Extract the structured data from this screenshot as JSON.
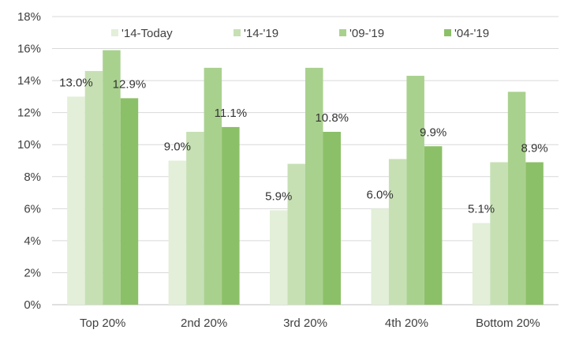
{
  "chart_data": {
    "type": "bar",
    "categories": [
      "Top 20%",
      "2nd 20%",
      "3rd 20%",
      "4th 20%",
      "Bottom 20%"
    ],
    "series": [
      {
        "name": "'14-Today",
        "color": "#e3efd9",
        "values": [
          13.0,
          9.0,
          5.9,
          6.0,
          5.1
        ],
        "labels": [
          "13.0%",
          "9.0%",
          "5.9%",
          "6.0%",
          "5.1%"
        ]
      },
      {
        "name": "'14-'19",
        "color": "#c6e0b4",
        "values": [
          14.6,
          10.8,
          8.8,
          9.1,
          8.9
        ],
        "labels": []
      },
      {
        "name": "'09-'19",
        "color": "#a9d18e",
        "values": [
          15.9,
          14.8,
          14.8,
          14.3,
          13.3
        ],
        "labels": []
      },
      {
        "name": "'04-'19",
        "color": "#8cc068",
        "values": [
          12.9,
          11.1,
          10.8,
          9.9,
          8.9
        ],
        "labels": [
          "12.9%",
          "11.1%",
          "10.8%",
          "9.9%",
          "8.9%"
        ]
      }
    ],
    "yticks": [
      "0%",
      "2%",
      "4%",
      "6%",
      "8%",
      "10%",
      "12%",
      "14%",
      "16%",
      "18%"
    ],
    "ylim": [
      0,
      18
    ],
    "grid": true,
    "legend_position": "top"
  }
}
